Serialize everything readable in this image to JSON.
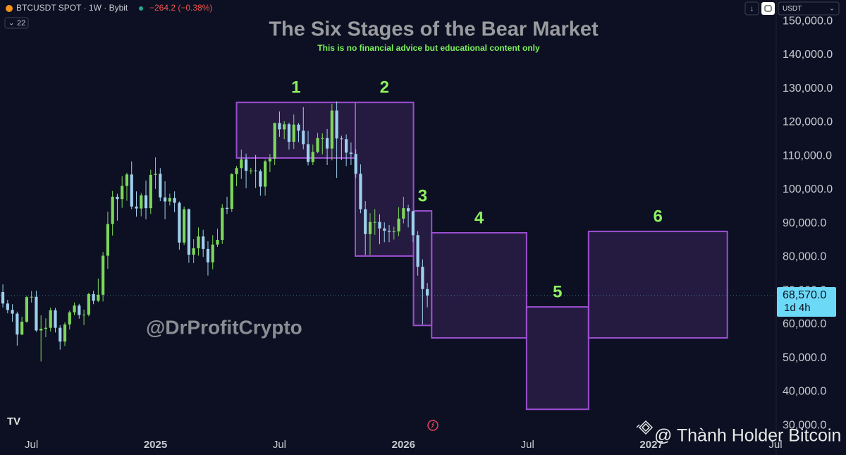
{
  "chart_data": {
    "type": "candlestick",
    "title": "The Six Stages of the Bear Market",
    "subtitle": "This is no financial advice but educational content only",
    "symbol": "BTCUSDT SPOT · 1W · Bybit",
    "change": "−264.2 (−0.38%)",
    "indicator_count": "22",
    "currency": "USDT",
    "watermark": "@DrProfitCrypto",
    "credit": "@ Thành Holder Bitcoin",
    "up_color": "#7ed75a",
    "down_color": "#9fd0ee",
    "stage_color": "#9b4fd0",
    "xlim": [
      -32.6,
      130
    ],
    "ylim": [
      27100,
      156300
    ],
    "xticks": [
      {
        "value": -26,
        "label": "Jul"
      },
      {
        "value": 0,
        "label": "2025"
      },
      {
        "value": 26,
        "label": "Jul"
      },
      {
        "value": 52,
        "label": "2026"
      },
      {
        "value": 78,
        "label": "Jul"
      },
      {
        "value": 104,
        "label": "2027"
      },
      {
        "value": 130,
        "label": "Jul"
      }
    ],
    "yticks": [
      {
        "value": 30000,
        "label": "30,000.0"
      },
      {
        "value": 40000,
        "label": "40,000.0"
      },
      {
        "value": 50000,
        "label": "50,000.0"
      },
      {
        "value": 60000,
        "label": "60,000.0"
      },
      {
        "value": 70000,
        "label": "70,000.0"
      },
      {
        "value": 80000,
        "label": "80,000.0"
      },
      {
        "value": 90000,
        "label": "90,000.0"
      },
      {
        "value": 100000,
        "label": "100,000.0"
      },
      {
        "value": 110000,
        "label": "110,000.0"
      },
      {
        "value": 120000,
        "label": "120,000.0"
      },
      {
        "value": 130000,
        "label": "130,000.0"
      },
      {
        "value": 140000,
        "label": "140,000.0"
      },
      {
        "value": 150000,
        "label": "150,000.0"
      }
    ],
    "last_price": {
      "value": 68570,
      "label": "68,570.0"
    },
    "countdown": "1d 4h",
    "x": [
      -32,
      -31,
      -30,
      -29,
      -28,
      -27,
      -26,
      -25,
      -24,
      -23,
      -22,
      -21,
      -20,
      -19,
      -18,
      -17,
      -16,
      -15,
      -14,
      -13,
      -12,
      -11,
      -10,
      -9,
      -8,
      -7,
      -6,
      -5,
      -4,
      -3,
      -2,
      -1,
      0,
      1,
      2,
      3,
      4,
      5,
      6,
      7,
      8,
      9,
      10,
      11,
      12,
      13,
      14,
      15,
      16,
      17,
      18,
      19,
      20,
      21,
      22,
      23,
      24,
      25,
      26,
      27,
      28,
      29,
      30,
      31,
      32,
      33,
      34,
      35,
      36,
      37,
      38,
      39,
      40,
      41,
      42,
      43,
      44,
      45,
      46,
      47,
      48,
      49,
      50,
      51,
      52,
      53,
      54,
      55,
      56,
      57
    ],
    "open": [
      69600,
      66200,
      64300,
      63200,
      57000,
      60800,
      68100,
      68200,
      58200,
      58700,
      59000,
      64200,
      59000,
      54900,
      60000,
      63600,
      65600,
      62800,
      62900,
      69000,
      67000,
      68800,
      80400,
      89800,
      97900,
      97200,
      101100,
      104500,
      95000,
      94400,
      98300,
      94500,
      104400,
      104700,
      97700,
      96500,
      97500,
      96100,
      84300,
      94200,
      80700,
      82600,
      86100,
      82400,
      78400,
      83700,
      85100,
      94600,
      94300,
      104600,
      106400,
      109000,
      105600,
      105700,
      105500,
      100900,
      108400,
      109200,
      119800,
      117900,
      119400,
      114200,
      119300,
      117500,
      113500,
      108200,
      111200,
      115300,
      115300,
      112200,
      123500,
      115200,
      115000,
      111000,
      110600,
      104700,
      94200,
      86800,
      90400,
      90400,
      88500,
      87800,
      87500,
      87600,
      91400,
      94500,
      93600,
      86500,
      77100,
      70500
    ],
    "high": [
      71900,
      67300,
      66000,
      63800,
      62300,
      68500,
      69900,
      70000,
      62700,
      61800,
      65000,
      64900,
      59800,
      60600,
      64100,
      66500,
      66100,
      64400,
      69400,
      70000,
      73600,
      81500,
      93500,
      99600,
      98800,
      104000,
      105000,
      108400,
      99500,
      99000,
      102700,
      105900,
      109600,
      106400,
      102500,
      98800,
      99500,
      96500,
      95000,
      94400,
      85300,
      88800,
      88100,
      84700,
      86500,
      88400,
      95700,
      97900,
      104900,
      107100,
      111900,
      110700,
      106500,
      110300,
      106000,
      108900,
      110600,
      119900,
      123200,
      120300,
      119900,
      122300,
      119800,
      124500,
      117400,
      113400,
      116800,
      116700,
      118000,
      125500,
      126200,
      116000,
      116400,
      114000,
      112000,
      107500,
      96600,
      93000,
      94200,
      92700,
      90300,
      89500,
      89000,
      94800,
      97900,
      95500,
      93700,
      87700,
      79300,
      72300
    ],
    "low": [
      65000,
      63300,
      60800,
      53700,
      56800,
      60500,
      66500,
      57800,
      49000,
      56200,
      57900,
      57600,
      52500,
      53600,
      58500,
      62700,
      61700,
      59800,
      62400,
      66000,
      66600,
      66800,
      76500,
      86400,
      90800,
      94600,
      96700,
      94200,
      92000,
      92100,
      91200,
      92800,
      100200,
      96600,
      91200,
      95300,
      93300,
      82200,
      83600,
      78300,
      78200,
      80400,
      80000,
      74500,
      76400,
      83000,
      83900,
      92800,
      93400,
      101000,
      103200,
      100400,
      104600,
      100500,
      98200,
      98200,
      105200,
      107300,
      115700,
      115000,
      111900,
      112100,
      114100,
      112000,
      107200,
      107300,
      110800,
      110500,
      107300,
      108700,
      103500,
      108800,
      107000,
      107300,
      103500,
      93000,
      80600,
      80600,
      86600,
      83800,
      84400,
      84400,
      85200,
      86200,
      90000,
      88800,
      84400,
      74500,
      60000,
      65100
    ],
    "close": [
      66200,
      64300,
      63200,
      57000,
      60800,
      68100,
      68200,
      58200,
      58700,
      59000,
      64200,
      59000,
      54900,
      60000,
      63600,
      65600,
      62800,
      62900,
      69000,
      67000,
      68800,
      80400,
      89800,
      97900,
      97200,
      101100,
      104500,
      95000,
      94400,
      98300,
      94500,
      104400,
      104700,
      97700,
      96500,
      97500,
      96100,
      84300,
      94200,
      80700,
      82600,
      86100,
      82400,
      78400,
      83700,
      85100,
      94600,
      94300,
      104600,
      106400,
      109000,
      105600,
      105700,
      105500,
      100900,
      108400,
      109200,
      119800,
      117900,
      119400,
      114200,
      119300,
      117500,
      113500,
      108200,
      111200,
      115300,
      115300,
      112200,
      123500,
      115200,
      115000,
      111000,
      110600,
      104700,
      94200,
      86800,
      90400,
      90400,
      88500,
      87800,
      87500,
      87600,
      91400,
      94500,
      93600,
      86500,
      77100,
      70500,
      68600
    ],
    "stages": [
      {
        "label": "1",
        "x": [
          17.0,
          41.9
        ],
        "y": [
          109400,
          125900
        ]
      },
      {
        "label": "2",
        "x": [
          41.9,
          54.1
        ],
        "y": [
          80300,
          125900
        ]
      },
      {
        "label": "3",
        "x": [
          54.1,
          57.9
        ],
        "y": [
          59700,
          93700
        ]
      },
      {
        "label": "4",
        "x": [
          57.9,
          77.8
        ],
        "y": [
          56000,
          87200
        ]
      },
      {
        "label": "5",
        "x": [
          77.8,
          90.8
        ],
        "y": [
          34800,
          65200
        ]
      },
      {
        "label": "6",
        "x": [
          90.8,
          119.9
        ],
        "y": [
          56000,
          87600
        ]
      }
    ]
  }
}
